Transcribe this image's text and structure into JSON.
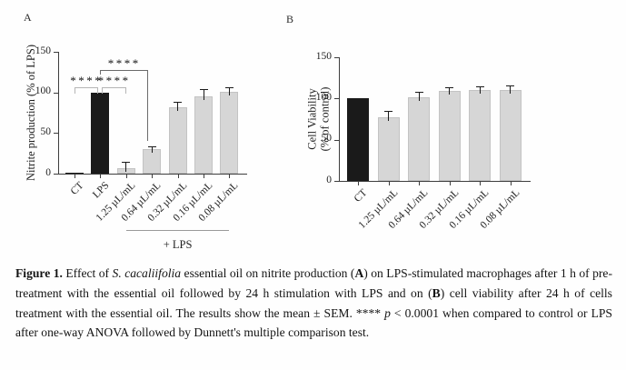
{
  "colors": {
    "bar_black": "#1a1a1a",
    "bar_gray": "#d6d6d6",
    "axis": "#3d3d3d",
    "bracket_light": "#b5b5b5",
    "bracket_dark": "#6b6b6b",
    "group_line": "#9a9a9a"
  },
  "chart_data": [
    {
      "type": "bar",
      "panel_label": "A",
      "ylabel_lines": [
        "Nitrite production (% of LPS)"
      ],
      "ylim": [
        0,
        150
      ],
      "yticks": [
        0,
        50,
        100,
        150
      ],
      "categories": [
        "CT",
        "LPS",
        "1.25 µL/mL",
        "0.64 µL/mL",
        "0.32 µL/mL",
        "0.16 µL/mL",
        "0.08 µL/mL"
      ],
      "values": [
        1,
        100,
        7,
        30,
        82,
        95,
        101
      ],
      "errors": [
        0,
        0,
        8,
        4,
        6,
        9,
        5
      ],
      "bar_colors": [
        "black",
        "black",
        "gray",
        "gray",
        "gray",
        "gray",
        "gray"
      ],
      "group_annotation": {
        "label": "+ LPS",
        "from_index": 2,
        "to_index": 6
      },
      "significance": [
        {
          "stars": "****",
          "from_index": 0,
          "to_index": 1,
          "level": 106,
          "left_arm_to": 99,
          "right_arm_to": 99,
          "tone": "light"
        },
        {
          "stars": "****",
          "from_index": 1,
          "to_index": 2,
          "level": 106,
          "left_arm_to": 99,
          "right_arm_to": 99,
          "tone": "light"
        },
        {
          "stars": "****",
          "from_index": 1,
          "to_index": 3,
          "level": 128,
          "left_arm_to": 122,
          "right_arm_to": 40,
          "tone": "dark"
        }
      ]
    },
    {
      "type": "bar",
      "panel_label": "B",
      "ylabel_lines": [
        "Cell Viability",
        "(% of control)"
      ],
      "ylim": [
        0,
        150
      ],
      "yticks": [
        0,
        50,
        100,
        150
      ],
      "categories": [
        "CT",
        "1.25 µL/mL",
        "0.64 µL/mL",
        "0.32 µL/mL",
        "0.16 µL/mL",
        "0.08 µL/mL"
      ],
      "values": [
        100,
        77,
        101,
        109,
        110,
        110
      ],
      "errors": [
        0,
        8,
        7,
        5,
        5,
        6
      ],
      "bar_colors": [
        "black",
        "gray",
        "gray",
        "gray",
        "gray",
        "gray"
      ],
      "significance": []
    }
  ],
  "caption": {
    "segments": [
      {
        "text": "Figure 1.",
        "bold": true
      },
      {
        "text": " Effect of "
      },
      {
        "text": "S. cacaliifolia",
        "italic": true
      },
      {
        "text": " essential oil on nitrite production ("
      },
      {
        "text": "A",
        "bold": true
      },
      {
        "text": ") on LPS-stimulated macrophages after 1 h of pre-treatment with the essential oil followed by 24 h stimulation with LPS and on ("
      },
      {
        "text": "B",
        "bold": true
      },
      {
        "text": ") cell viability after 24 h of cells treatment with the essential oil. The results show the mean ± SEM. **** "
      },
      {
        "text": "p",
        "italic": true
      },
      {
        "text": " < 0.0001 when compared to control or LPS after one-way ANOVA followed by Dunnett's multiple comparison test."
      }
    ]
  }
}
